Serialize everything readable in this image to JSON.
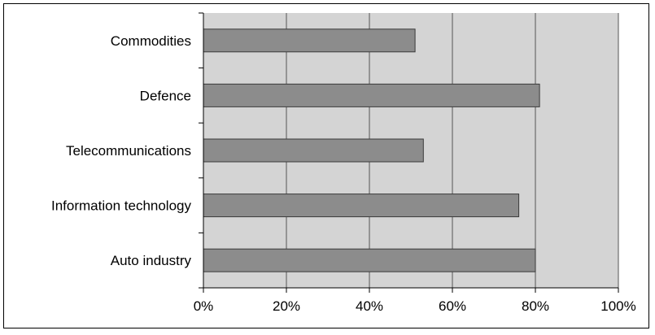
{
  "chart_data": {
    "type": "bar",
    "orientation": "horizontal",
    "categories": [
      "Commodities",
      "Defence",
      "Telecommunications",
      "Information technology",
      "Auto industry"
    ],
    "values": [
      51,
      81,
      53,
      76,
      80
    ],
    "value_unit": "%",
    "xlim": [
      0,
      100
    ],
    "x_ticks": [
      "0%",
      "20%",
      "40%",
      "60%",
      "80%",
      "100%"
    ],
    "grid": true,
    "legend": "none",
    "title": "",
    "xlabel": "",
    "ylabel": "",
    "colors": {
      "bar_fill": "#8c8c8c",
      "bar_stroke": "#3a3a3a",
      "plot_background": "#d4d4d4",
      "gridline": "#555555"
    }
  }
}
